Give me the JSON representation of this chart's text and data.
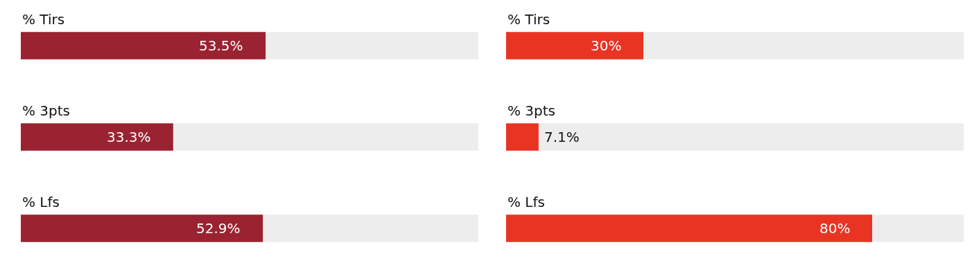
{
  "chart_data": [
    {
      "type": "bar",
      "orientation": "horizontal",
      "categories": [
        "% Tirs",
        "% 3pts",
        "% Lfs"
      ],
      "values": [
        53.5,
        33.3,
        52.9
      ],
      "value_labels": [
        "53.5%",
        "33.3%",
        "52.9%"
      ],
      "color": "#9b2231",
      "xlim": [
        0,
        100
      ],
      "grid": false,
      "legend": false
    },
    {
      "type": "bar",
      "orientation": "horizontal",
      "categories": [
        "% Tirs",
        "% 3pts",
        "% Lfs"
      ],
      "values": [
        30,
        7.1,
        80
      ],
      "value_labels": [
        "30%",
        "7.1%",
        "80%"
      ],
      "color": "#e93424",
      "xlim": [
        0,
        100
      ],
      "grid": false,
      "legend": false
    }
  ]
}
